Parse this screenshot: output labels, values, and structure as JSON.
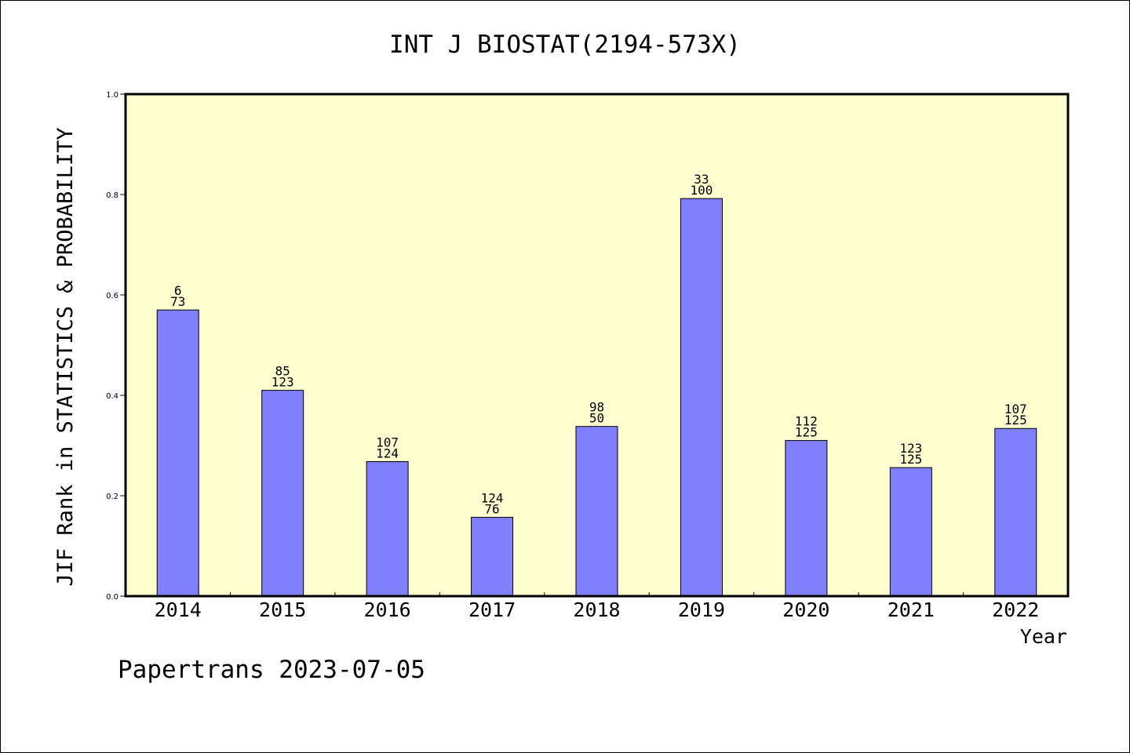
{
  "chart_data": {
    "type": "bar",
    "title": "INT J BIOSTAT(2194-573X)",
    "xlabel": "Year",
    "ylabel": "JIF Rank in STATISTICS & PROBABILITY",
    "ylim": [
      0.0,
      1.0
    ],
    "yticks": [
      "0.0",
      "0.2",
      "0.4",
      "0.6",
      "0.8",
      "1.0"
    ],
    "categories": [
      "2014",
      "2015",
      "2016",
      "2017",
      "2018",
      "2019",
      "2020",
      "2021",
      "2022"
    ],
    "values": [
      0.57,
      0.41,
      0.268,
      0.157,
      0.338,
      0.792,
      0.31,
      0.256,
      0.334
    ],
    "label_top": [
      "6",
      "85",
      "107",
      "124",
      "98",
      "33",
      "112",
      "123",
      "107"
    ],
    "label_bottom": [
      "73",
      "123",
      "124",
      "76",
      "50",
      "100",
      "125",
      "125",
      "125"
    ],
    "grid": false,
    "colors": {
      "bar": "#8080ff",
      "plot_background": "#ffffd0",
      "axis": "#000000"
    }
  },
  "footer": "Papertrans 2023-07-05"
}
